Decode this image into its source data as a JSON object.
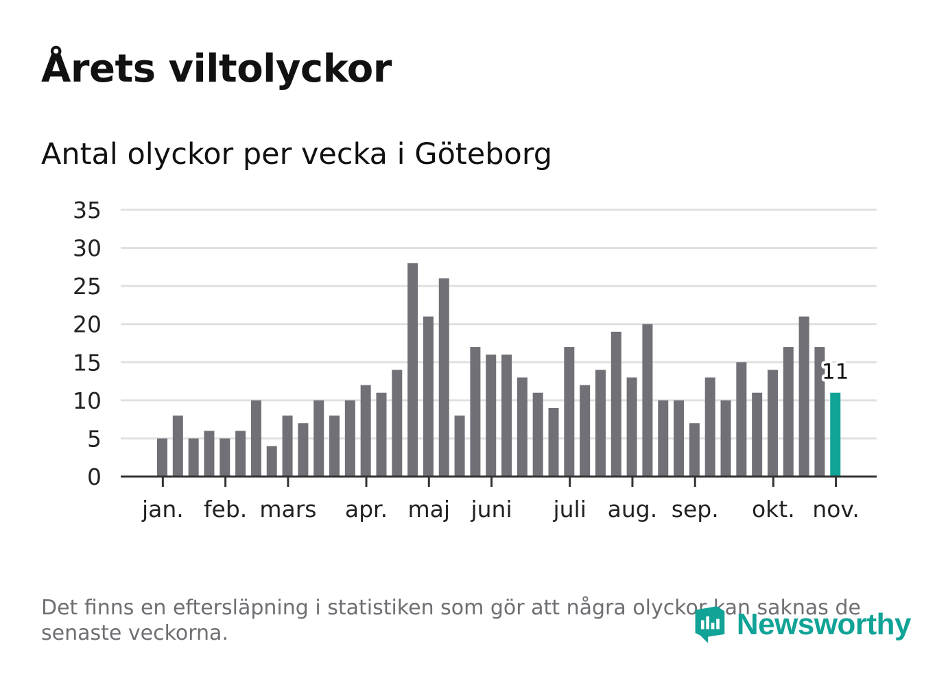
{
  "header": {
    "title": "Årets viltolyckor",
    "subtitle": "Antal olyckor per vecka i Göteborg"
  },
  "footer": {
    "note": "Det finns en eftersläpning i statistiken som gör att några olyckor kan saknas de senaste veckorna.",
    "brand": "Newsworthy"
  },
  "colors": {
    "bar": "#717077",
    "highlight": "#10a396",
    "grid": "#e0e0e0",
    "axis": "#333333",
    "brand": "#10a396"
  },
  "chart_data": {
    "type": "bar",
    "title": "Antal olyckor per vecka i Göteborg",
    "xlabel": "",
    "ylabel": "",
    "ylim": [
      0,
      35
    ],
    "yticks": [
      0,
      5,
      10,
      15,
      20,
      25,
      30,
      35
    ],
    "grid": true,
    "week_values": [
      5,
      8,
      5,
      6,
      5,
      6,
      10,
      4,
      8,
      7,
      10,
      8,
      10,
      12,
      11,
      14,
      28,
      21,
      26,
      8,
      17,
      16,
      16,
      13,
      11,
      9,
      17,
      12,
      14,
      19,
      13,
      20,
      10,
      10,
      7,
      13,
      10,
      15,
      11,
      14,
      17,
      21,
      17,
      11
    ],
    "highlight_index": 43,
    "highlight_label": "11",
    "month_labels": [
      {
        "label": "jan.",
        "bar_position": 0.3
      },
      {
        "label": "feb.",
        "bar_position": 4.3
      },
      {
        "label": "mars",
        "bar_position": 8.3
      },
      {
        "label": "apr.",
        "bar_position": 13.3
      },
      {
        "label": "maj",
        "bar_position": 17.3
      },
      {
        "label": "juni",
        "bar_position": 21.3
      },
      {
        "label": "juli",
        "bar_position": 26.3
      },
      {
        "label": "aug.",
        "bar_position": 30.3
      },
      {
        "label": "sep.",
        "bar_position": 34.3
      },
      {
        "label": "okt.",
        "bar_position": 39.3
      },
      {
        "label": "nov.",
        "bar_position": 43.3
      }
    ]
  }
}
